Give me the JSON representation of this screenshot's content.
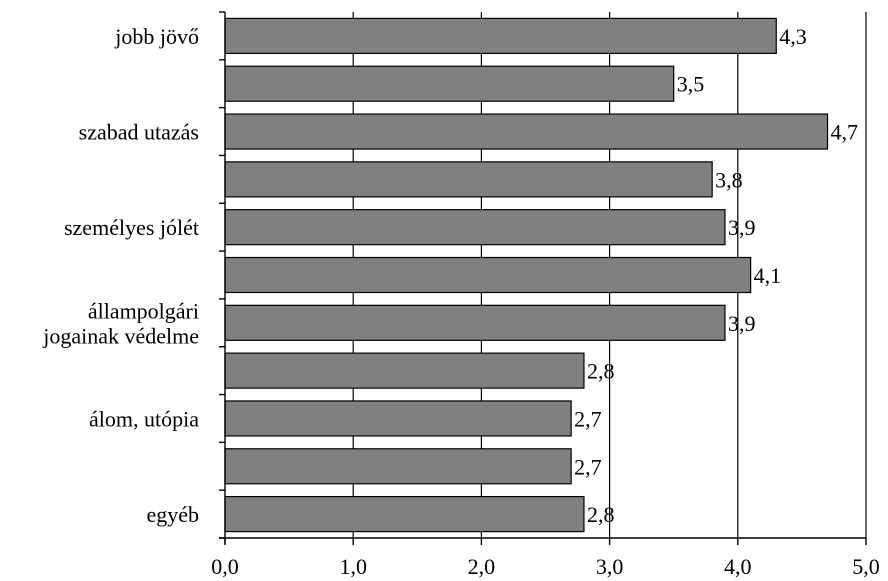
{
  "chart_data": {
    "type": "bar",
    "orientation": "horizontal",
    "title": "",
    "xlabel": "",
    "ylabel": "",
    "xlim": [
      0,
      5
    ],
    "x_ticks": [
      0,
      1,
      2,
      3,
      4,
      5
    ],
    "x_tick_labels": [
      "0,0",
      "1,0",
      "2,0",
      "3,0",
      "4,0",
      "5,0"
    ],
    "grid": "vertical major gridlines",
    "legend": "none",
    "bar_color": "#808080",
    "categories": [
      {
        "label": "jobb jövő",
        "value": 4.3,
        "value_label": "4,3"
      },
      {
        "label": "",
        "value": 3.5,
        "value_label": "3,5"
      },
      {
        "label": "szabad utazás",
        "value": 4.7,
        "value_label": "4,7"
      },
      {
        "label": "",
        "value": 3.8,
        "value_label": "3,8"
      },
      {
        "label": "személyes jólét",
        "value": 3.9,
        "value_label": "3,9"
      },
      {
        "label": "",
        "value": 4.1,
        "value_label": "4,1"
      },
      {
        "label": "állampolgári jogainak védelme",
        "label_lines": [
          "állampolgári",
          "jogainak védelme"
        ],
        "value": 3.9,
        "value_label": "3,9"
      },
      {
        "label": "",
        "value": 2.8,
        "value_label": "2,8"
      },
      {
        "label": "álom, utópia",
        "value": 2.7,
        "value_label": "2,7"
      },
      {
        "label": "",
        "value": 2.7,
        "value_label": "2,7"
      },
      {
        "label": "egyéb",
        "value": 2.8,
        "value_label": "2,8"
      }
    ]
  }
}
